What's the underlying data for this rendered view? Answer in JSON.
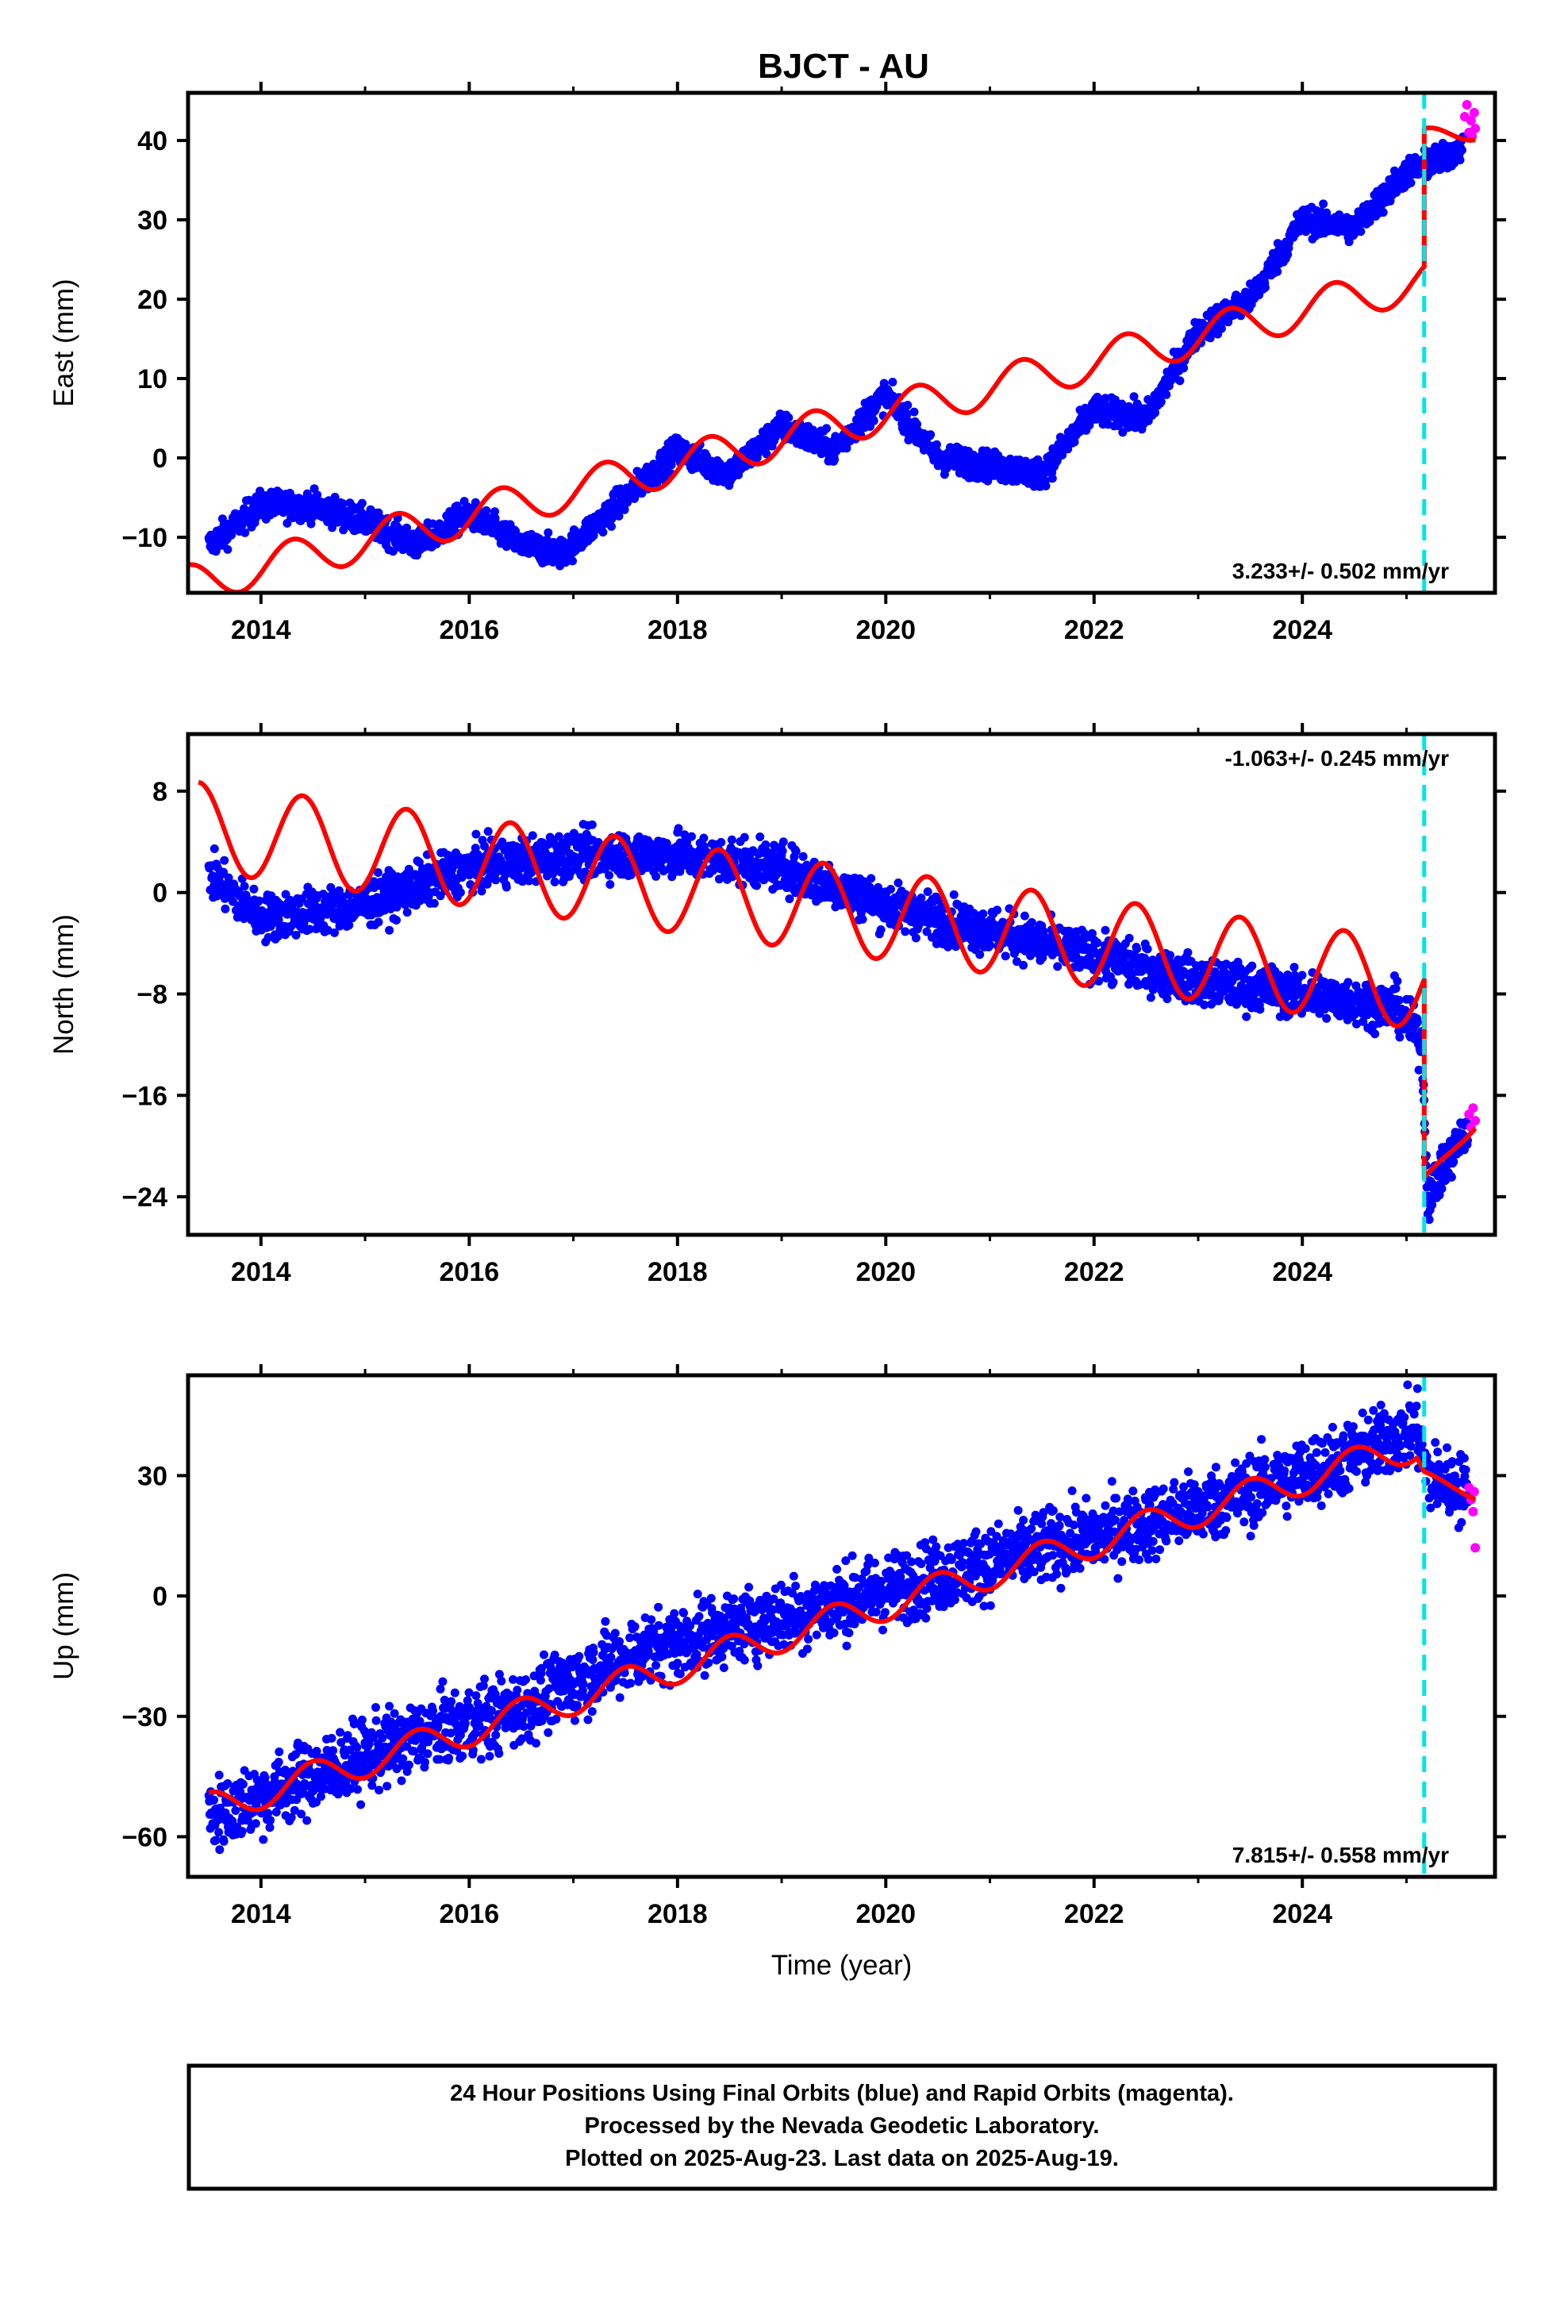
{
  "title": "BJCT - AU",
  "colors": {
    "final_orbits": "#0000ff",
    "rapid_orbits": "#ff00ff",
    "model": "#ff0000",
    "event_line": "#00e5e5",
    "frame": "#000000"
  },
  "footer": {
    "lines": [
      "24 Hour Positions Using Final Orbits (blue) and Rapid Orbits (magenta).",
      "Processed by the Nevada Geodetic Laboratory.",
      "Plotted on 2025-Aug-23. Last data on 2025-Aug-19."
    ]
  },
  "chart_data": [
    {
      "type": "scatter",
      "component": "east",
      "ylabel": "East (mm)",
      "xlabel": "",
      "xlim": [
        2013.3,
        2025.85
      ],
      "ylim": [
        -17,
        46
      ],
      "xticks": [
        2014,
        2016,
        2018,
        2020,
        2022,
        2024
      ],
      "xtick_labels": [
        "2014",
        "2016",
        "2018",
        "2020",
        "2022",
        "2024"
      ],
      "yticks": [
        -10,
        0,
        10,
        20,
        30,
        40
      ],
      "ytick_labels": [
        "−10",
        "0",
        "10",
        "20",
        "30",
        "40"
      ],
      "rate_label": "3.233+/- 0.502 mm/yr",
      "rate_position": "bottom-right",
      "event_time": 2025.17,
      "observed_trend": [
        [
          2013.5,
          -11
        ],
        [
          2014.0,
          -6
        ],
        [
          2014.5,
          -6
        ],
        [
          2015.0,
          -8
        ],
        [
          2015.5,
          -11
        ],
        [
          2016.0,
          -7
        ],
        [
          2016.5,
          -11
        ],
        [
          2016.9,
          -12
        ],
        [
          2017.5,
          -5
        ],
        [
          2018.0,
          1
        ],
        [
          2018.5,
          -2
        ],
        [
          2019.0,
          4
        ],
        [
          2019.5,
          1
        ],
        [
          2020.0,
          8
        ],
        [
          2020.5,
          0
        ],
        [
          2021.0,
          -1
        ],
        [
          2021.5,
          -2
        ],
        [
          2022.0,
          6
        ],
        [
          2022.5,
          5
        ],
        [
          2023.0,
          16
        ],
        [
          2023.5,
          20
        ],
        [
          2024.0,
          30
        ],
        [
          2024.5,
          29
        ],
        [
          2025.0,
          36
        ],
        [
          2025.4,
          38
        ],
        [
          2025.6,
          40
        ]
      ],
      "observed_annual_amplitude": 1.2,
      "observed_scatter": 0.9,
      "rapid_points": [
        [
          2025.56,
          43
        ],
        [
          2025.58,
          44.5
        ],
        [
          2025.6,
          41
        ],
        [
          2025.62,
          42.5
        ],
        [
          2025.63,
          40.5
        ],
        [
          2025.65,
          43.5
        ],
        [
          2025.66,
          41.5
        ]
      ],
      "model_before": {
        "t0": 2013.3,
        "t1": 2025.17,
        "y0": -16,
        "rate": 3.233,
        "annual_amplitude": 2.5,
        "annual_phase": 0.5
      },
      "model_after": {
        "t0": 2025.17,
        "t1": 2025.66,
        "y0": 40,
        "rate": 3.233,
        "annual_amplitude": 1.5,
        "annual_phase": 0.5
      }
    },
    {
      "type": "scatter",
      "component": "north",
      "ylabel": "North (mm)",
      "xlabel": "",
      "xlim": [
        2013.3,
        2025.85
      ],
      "ylim": [
        -27,
        12.5
      ],
      "xticks": [
        2014,
        2016,
        2018,
        2020,
        2022,
        2024
      ],
      "xtick_labels": [
        "2014",
        "2016",
        "2018",
        "2020",
        "2022",
        "2024"
      ],
      "yticks": [
        -24,
        -16,
        -8,
        0,
        8
      ],
      "ytick_labels": [
        "−24",
        "−16",
        "−8",
        "0",
        "8"
      ],
      "rate_label": "-1.063+/- 0.245 mm/yr",
      "rate_position": "top-right",
      "event_time": 2025.17,
      "observed_trend": [
        [
          2013.5,
          1.5
        ],
        [
          2014.0,
          -2
        ],
        [
          2015.0,
          -1
        ],
        [
          2016.0,
          2
        ],
        [
          2017.0,
          3
        ],
        [
          2018.0,
          3
        ],
        [
          2019.0,
          2
        ],
        [
          2020.0,
          -1
        ],
        [
          2021.0,
          -3
        ],
        [
          2022.0,
          -5
        ],
        [
          2023.0,
          -7
        ],
        [
          2024.0,
          -8
        ],
        [
          2024.9,
          -9
        ],
        [
          2025.15,
          -12
        ],
        [
          2025.2,
          -24
        ],
        [
          2025.66,
          -17.5
        ]
      ],
      "observed_annual_amplitude": 4.5,
      "observed_scatter": 0.9,
      "rapid_points": [
        [
          2025.6,
          -17.5
        ],
        [
          2025.62,
          -18.5
        ],
        [
          2025.64,
          -17
        ],
        [
          2025.66,
          -18
        ]
      ],
      "model_before": {
        "t0": 2013.4,
        "t1": 2025.17,
        "y0": 5.2,
        "rate": -1.063,
        "annual_amplitude": 3.5,
        "annual_phase": 0.5
      },
      "model_after": {
        "t0": 2025.17,
        "t1": 2025.66,
        "y0": -23,
        "rate": 10,
        "annual_amplitude": 0.5,
        "annual_phase": 0.5
      }
    },
    {
      "type": "scatter",
      "component": "up",
      "ylabel": "Up (mm)",
      "xlabel": "Time (year)",
      "xlim": [
        2013.3,
        2025.85
      ],
      "ylim": [
        -70,
        55
      ],
      "xticks": [
        2014,
        2016,
        2018,
        2020,
        2022,
        2024
      ],
      "xtick_labels": [
        "2014",
        "2016",
        "2018",
        "2020",
        "2022",
        "2024"
      ],
      "yticks": [
        -60,
        -30,
        0,
        30
      ],
      "ytick_labels": [
        "−60",
        "−30",
        "0",
        "30"
      ],
      "rate_label": "7.815+/- 0.558 mm/yr",
      "rate_position": "bottom-right",
      "event_time": 2025.17,
      "observed_trend": [
        [
          2013.5,
          -55
        ],
        [
          2014.5,
          -45
        ],
        [
          2015.5,
          -35
        ],
        [
          2016.5,
          -28
        ],
        [
          2017.5,
          -15
        ],
        [
          2018.5,
          -8
        ],
        [
          2019.5,
          -2
        ],
        [
          2020.5,
          5
        ],
        [
          2021.5,
          12
        ],
        [
          2022.5,
          18
        ],
        [
          2023.5,
          26
        ],
        [
          2024.5,
          35
        ],
        [
          2025.1,
          42
        ],
        [
          2025.2,
          30
        ],
        [
          2025.66,
          25
        ]
      ],
      "observed_annual_amplitude": 4,
      "observed_scatter": 4.5,
      "rapid_points": [
        [
          2025.6,
          27
        ],
        [
          2025.62,
          24
        ],
        [
          2025.64,
          21
        ],
        [
          2025.66,
          12
        ],
        [
          2025.65,
          26
        ]
      ],
      "model_before": {
        "t0": 2013.5,
        "t1": 2025.1,
        "y0": -53,
        "rate": 7.815,
        "annual_amplitude": 4,
        "annual_phase": 0.0
      },
      "model_after": {
        "t0": 2025.17,
        "t1": 2025.66,
        "y0": 30,
        "rate": -10,
        "annual_amplitude": 1,
        "annual_phase": 0.0
      }
    }
  ]
}
